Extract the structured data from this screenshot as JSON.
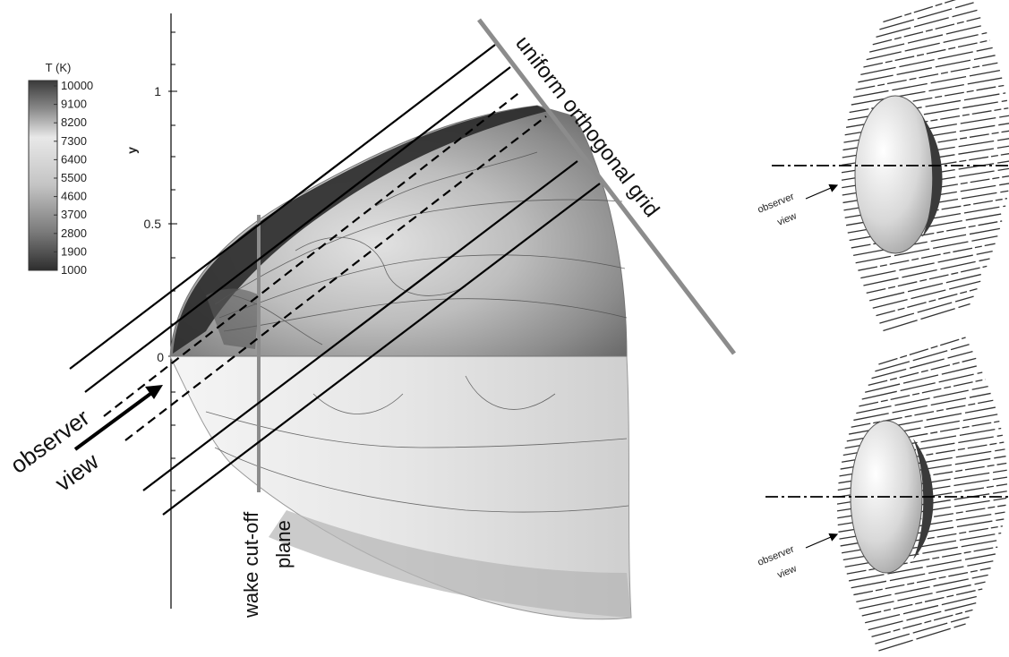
{
  "colorbar": {
    "title": "T (K)",
    "levels": [
      "10000",
      "9100",
      "8200",
      "7300",
      "6400",
      "5500",
      "4600",
      "3700",
      "2800",
      "1900",
      "1000"
    ]
  },
  "axis": {
    "ylabel": "y",
    "yticks": [
      "1",
      "0.5",
      "0"
    ]
  },
  "labels": {
    "observer": "observer",
    "view": "view",
    "wake_line1": "wake cut-off",
    "wake_line2": "plane",
    "grid": "uniform orthogonal grid"
  },
  "insets": [
    {
      "observer": "observer",
      "view": "view"
    },
    {
      "observer": "observer",
      "view": "view"
    }
  ]
}
